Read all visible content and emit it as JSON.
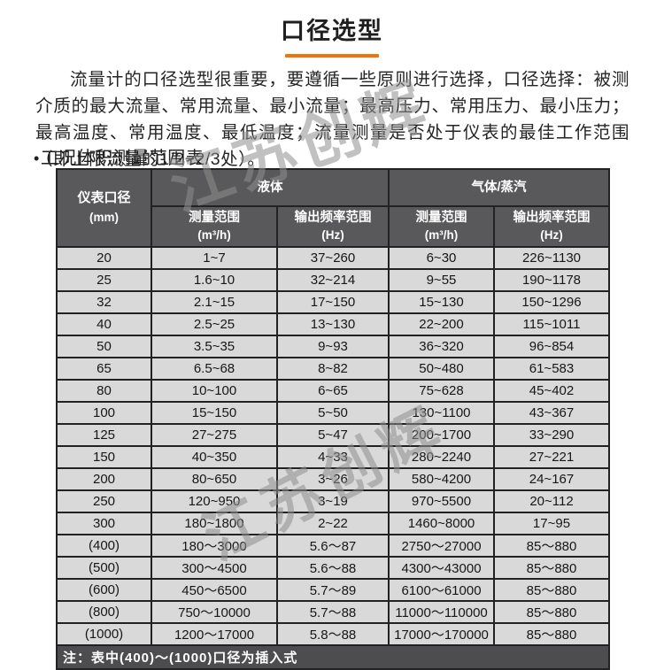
{
  "title": "口径选型",
  "intro": "流量计的口径选型很重要，要遵循一些原则进行选择，口径选择：被测介质的最大流量、常用流量、最小流量；最高压力、常用压力、最小压力；最高温度、常用温度、最低温度；流量测量是否处于仪表的最佳工作范围（即上限流量的1/2~2/3处）。",
  "section": {
    "bullet_glyph": "•",
    "label": "工况体积测量范围表"
  },
  "watermark": {
    "text": "江苏创辉"
  },
  "colors": {
    "accent_orange": "#f2720c",
    "header_bg": "#59595b",
    "note_bg": "#4d4d4f",
    "row_bg": "#d9d9d9",
    "border": "#222224"
  },
  "table": {
    "corner_header": {
      "line1": "仪表口径",
      "line2": "(mm)"
    },
    "groups": [
      {
        "label": "液体"
      },
      {
        "label": "气体/蒸汽"
      }
    ],
    "subheaders": {
      "range_label": "测量范围",
      "range_unit": "(m³/h)",
      "freq_label": "输出频率范围",
      "freq_unit": "(Hz)"
    },
    "column_semantics": [
      "仪表口径(mm)",
      "液体 测量范围(m³/h)",
      "液体 输出频率范围(Hz)",
      "气体/蒸汽 测量范围(m³/h)",
      "气体/蒸汽 输出频率范围(Hz)"
    ],
    "rows": [
      [
        "20",
        "1~7",
        "37~260",
        "6~30",
        "226~1130"
      ],
      [
        "25",
        "1.6~10",
        "32~214",
        "9~55",
        "190~1178"
      ],
      [
        "32",
        "2.1~15",
        "17~150",
        "15~130",
        "150~1296"
      ],
      [
        "40",
        "2.5~25",
        "13~130",
        "22~200",
        "115~1011"
      ],
      [
        "50",
        "3.5~35",
        "9~93",
        "36~320",
        "96~854"
      ],
      [
        "65",
        "6.5~68",
        "8~82",
        "50~480",
        "61~583"
      ],
      [
        "80",
        "10~100",
        "6~65",
        "75~628",
        "45~402"
      ],
      [
        "100",
        "15~150",
        "5~50",
        "130~1100",
        "43~367"
      ],
      [
        "125",
        "27~275",
        "5~47",
        "200~1700",
        "33~290"
      ],
      [
        "150",
        "40~350",
        "4~33",
        "280~2240",
        "27~221"
      ],
      [
        "200",
        "80~650",
        "3~26",
        "580~4200",
        "24~167"
      ],
      [
        "250",
        "120~950",
        "3~19",
        "970~5500",
        "20~112"
      ],
      [
        "300",
        "180~1800",
        "2~22",
        "1460~8000",
        "17~95"
      ],
      [
        "(400)",
        "180～3000",
        "5.6～87",
        "2750～27000",
        "85～880"
      ],
      [
        "(500)",
        "300～4500",
        "5.6～88",
        "4300～43000",
        "85～880"
      ],
      [
        "(600)",
        "450～6500",
        "5.7～89",
        "6100～61000",
        "85～880"
      ],
      [
        "(800)",
        "750～10000",
        "5.7～88",
        "11000～110000",
        "85～880"
      ],
      [
        "(1000)",
        "1200～17000",
        "5.8～88",
        "17000～170000",
        "85～880"
      ]
    ],
    "note": "注：表中(400)～(1000)口径为插入式"
  }
}
